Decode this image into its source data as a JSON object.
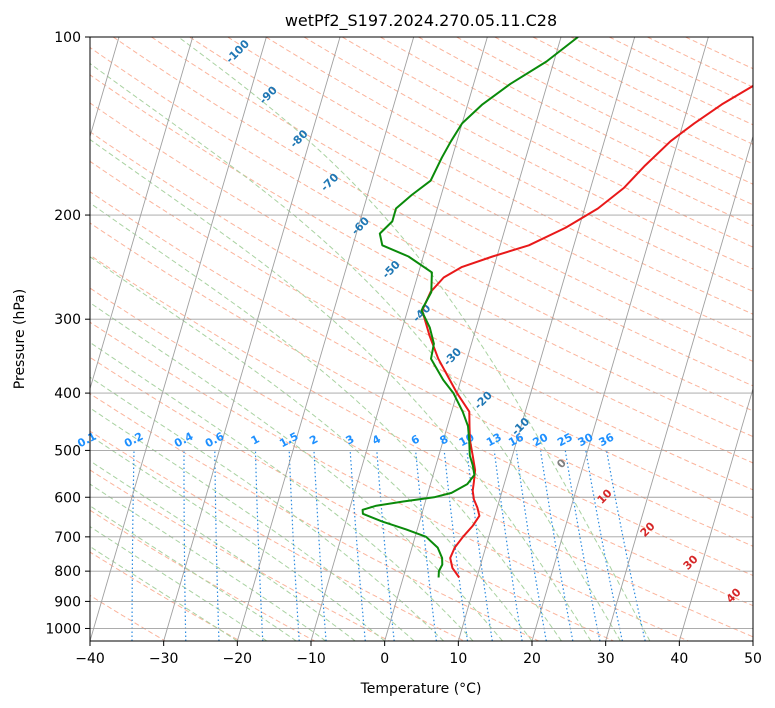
{
  "chart_data": {
    "type": "line",
    "title": "wetPf2_S197.2024.270.05.11.C28",
    "xlabel": "Temperature (°C)",
    "ylabel": "Pressure (hPa)",
    "xlim": [
      -40,
      50
    ],
    "ylim": [
      1050,
      100
    ],
    "y_scale": "log",
    "grid": true,
    "x_ticks": [
      -40,
      -30,
      -20,
      -10,
      0,
      10,
      20,
      30,
      40,
      50
    ],
    "y_ticks": [
      100,
      200,
      300,
      400,
      500,
      600,
      700,
      800,
      900,
      1000
    ],
    "colors": {
      "temperature": "#e8191a",
      "dewpoint": "#0a8a0a",
      "dry_adiabat": "#fbb49c",
      "moist_adiabat": "#a9d2a1",
      "mixing_ratio": "#2a8ae0",
      "isotherm": "#a0a0a0",
      "isobar": "#a0a0a0"
    },
    "series": [
      {
        "key": "temperature",
        "points": [
          [
            820,
            7.6
          ],
          [
            790,
            6.3
          ],
          [
            760,
            5.6
          ],
          [
            730,
            5.8
          ],
          [
            700,
            6.5
          ],
          [
            670,
            7.4
          ],
          [
            645,
            7.9
          ],
          [
            625,
            7.3
          ],
          [
            605,
            6.5
          ],
          [
            585,
            6.0
          ],
          [
            565,
            5.8
          ],
          [
            540,
            5.5
          ],
          [
            510,
            4.6
          ],
          [
            480,
            3.6
          ],
          [
            455,
            3.0
          ],
          [
            430,
            2.4
          ],
          [
            400,
            0.0
          ],
          [
            380,
            -1.5
          ],
          [
            350,
            -3.9
          ],
          [
            320,
            -6.0
          ],
          [
            290,
            -8.0
          ],
          [
            270,
            -7.6
          ],
          [
            255,
            -6.4
          ],
          [
            245,
            -4.4
          ],
          [
            235,
            -0.6
          ],
          [
            225,
            3.9
          ],
          [
            210,
            8.2
          ],
          [
            195,
            11.8
          ],
          [
            180,
            14.5
          ],
          [
            165,
            16.5
          ],
          [
            150,
            19.0
          ],
          [
            140,
            21.5
          ],
          [
            130,
            24.5
          ],
          [
            120,
            28.4
          ],
          [
            110,
            33.5
          ],
          [
            100,
            38.5
          ]
        ]
      },
      {
        "key": "dewpoint",
        "points": [
          [
            820,
            4.8
          ],
          [
            800,
            4.6
          ],
          [
            780,
            4.8
          ],
          [
            760,
            4.5
          ],
          [
            730,
            3.5
          ],
          [
            700,
            1.5
          ],
          [
            680,
            -1.5
          ],
          [
            660,
            -5.0
          ],
          [
            640,
            -8.0
          ],
          [
            630,
            -8.2
          ],
          [
            620,
            -6.5
          ],
          [
            610,
            -3.0
          ],
          [
            600,
            1.0
          ],
          [
            590,
            3.2
          ],
          [
            570,
            5.0
          ],
          [
            550,
            5.6
          ],
          [
            530,
            5.0
          ],
          [
            510,
            4.2
          ],
          [
            480,
            3.5
          ],
          [
            455,
            2.8
          ],
          [
            430,
            1.5
          ],
          [
            400,
            -0.5
          ],
          [
            380,
            -2.4
          ],
          [
            350,
            -4.9
          ],
          [
            330,
            -5.1
          ],
          [
            310,
            -6.3
          ],
          [
            290,
            -8.1
          ],
          [
            270,
            -7.5
          ],
          [
            250,
            -8.2
          ],
          [
            235,
            -12.0
          ],
          [
            225,
            -16.0
          ],
          [
            215,
            -16.8
          ],
          [
            205,
            -15.6
          ],
          [
            195,
            -15.6
          ],
          [
            185,
            -14.0
          ],
          [
            175,
            -12.0
          ],
          [
            160,
            -11.4
          ],
          [
            150,
            -10.8
          ],
          [
            140,
            -10.0
          ],
          [
            130,
            -8.0
          ],
          [
            120,
            -5.0
          ],
          [
            110,
            -1.0
          ],
          [
            100,
            2.3
          ]
        ]
      }
    ],
    "dry_adiabat_labels": [
      "-100",
      "-90",
      "-80",
      "-70",
      "-60",
      "-50",
      "-40",
      "-30",
      "-20",
      "-10",
      "0",
      "10",
      "20",
      "30",
      "40"
    ],
    "mixing_ratio_labels": [
      "0.1",
      "0.2",
      "0.4",
      "0.6",
      "1",
      "1.5",
      "2",
      "3",
      "4",
      "6",
      "8",
      "10",
      "13",
      "16",
      "20",
      "25",
      "30",
      "36"
    ]
  }
}
